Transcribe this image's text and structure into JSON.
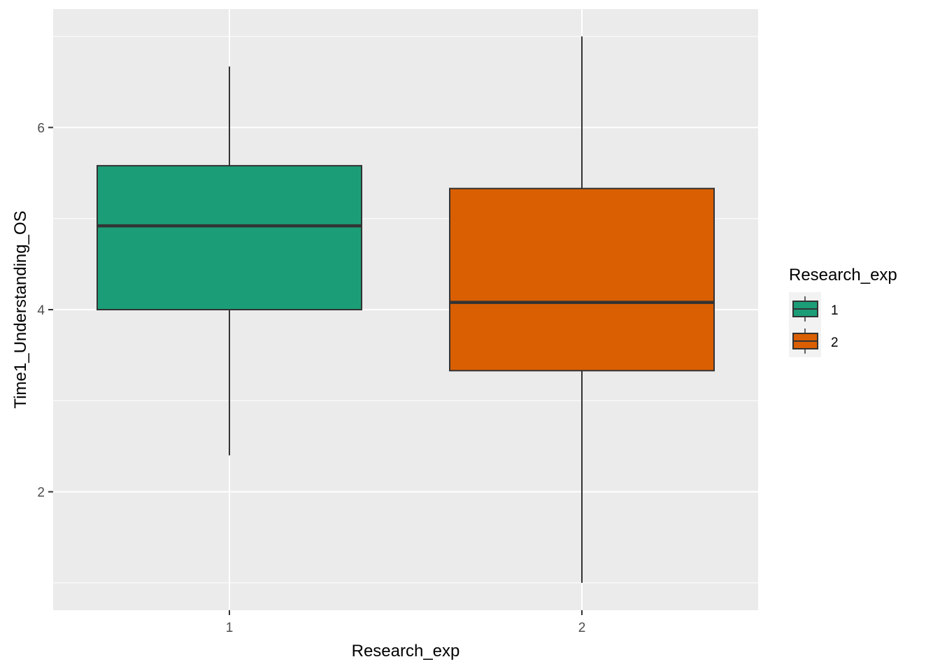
{
  "chart_data": {
    "type": "boxplot",
    "xlabel": "Research_exp",
    "ylabel": "Time1_Understanding_OS",
    "categories": [
      "1",
      "2"
    ],
    "boxes": [
      {
        "category": "1",
        "min": 2.4,
        "q1": 4.0,
        "median": 4.92,
        "q3": 5.58,
        "max": 6.67,
        "color": "#1b9e77"
      },
      {
        "category": "2",
        "min": 1.0,
        "q1": 3.33,
        "median": 4.08,
        "q3": 5.33,
        "max": 7.0,
        "color": "#d95f02"
      }
    ],
    "ylim": [
      0.7,
      7.3
    ],
    "y_major_ticks": [
      2,
      4,
      6
    ],
    "y_minor_ticks": [
      1,
      3,
      5,
      7
    ],
    "grid": true,
    "legend": {
      "title": "Research_exp",
      "position": "right",
      "items": [
        {
          "label": "1",
          "color": "#1b9e77"
        },
        {
          "label": "2",
          "color": "#d95f02"
        }
      ]
    }
  }
}
